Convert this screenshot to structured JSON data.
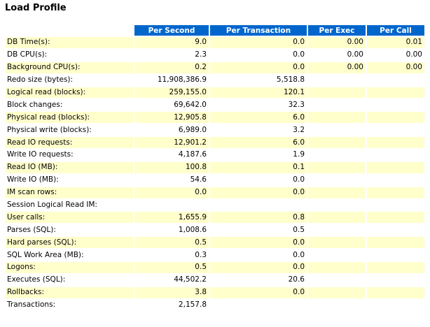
{
  "title": "Load Profile",
  "colors": {
    "header_bg": "#0066cc",
    "header_text": "#ffffff",
    "row_shaded": "#ffffcc",
    "row_plain": "#ffffff"
  },
  "columns": [
    "Per Second",
    "Per Transaction",
    "Per Exec",
    "Per Call"
  ],
  "rows": [
    {
      "label": "DB Time(s):",
      "per_second": "9.0",
      "per_transaction": "0.0",
      "per_exec": "0.00",
      "per_call": "0.01"
    },
    {
      "label": "DB CPU(s):",
      "per_second": "2.3",
      "per_transaction": "0.0",
      "per_exec": "0.00",
      "per_call": "0.00"
    },
    {
      "label": "Background CPU(s):",
      "per_second": "0.2",
      "per_transaction": "0.0",
      "per_exec": "0.00",
      "per_call": "0.00"
    },
    {
      "label": "Redo size (bytes):",
      "per_second": "11,908,386.9",
      "per_transaction": "5,518.8",
      "per_exec": "",
      "per_call": ""
    },
    {
      "label": "Logical read (blocks):",
      "per_second": "259,155.0",
      "per_transaction": "120.1",
      "per_exec": "",
      "per_call": ""
    },
    {
      "label": "Block changes:",
      "per_second": "69,642.0",
      "per_transaction": "32.3",
      "per_exec": "",
      "per_call": ""
    },
    {
      "label": "Physical read (blocks):",
      "per_second": "12,905.8",
      "per_transaction": "6.0",
      "per_exec": "",
      "per_call": ""
    },
    {
      "label": "Physical write (blocks):",
      "per_second": "6,989.0",
      "per_transaction": "3.2",
      "per_exec": "",
      "per_call": ""
    },
    {
      "label": "Read IO requests:",
      "per_second": "12,901.2",
      "per_transaction": "6.0",
      "per_exec": "",
      "per_call": ""
    },
    {
      "label": "Write IO requests:",
      "per_second": "4,187.6",
      "per_transaction": "1.9",
      "per_exec": "",
      "per_call": ""
    },
    {
      "label": "Read IO (MB):",
      "per_second": "100.8",
      "per_transaction": "0.1",
      "per_exec": "",
      "per_call": ""
    },
    {
      "label": "Write IO (MB):",
      "per_second": "54.6",
      "per_transaction": "0.0",
      "per_exec": "",
      "per_call": ""
    },
    {
      "label": "IM scan rows:",
      "per_second": "0.0",
      "per_transaction": "0.0",
      "per_exec": "",
      "per_call": ""
    },
    {
      "label": "Session Logical Read IM:",
      "per_second": "",
      "per_transaction": "",
      "per_exec": "",
      "per_call": ""
    },
    {
      "label": "User calls:",
      "per_second": "1,655.9",
      "per_transaction": "0.8",
      "per_exec": "",
      "per_call": ""
    },
    {
      "label": "Parses (SQL):",
      "per_second": "1,008.6",
      "per_transaction": "0.5",
      "per_exec": "",
      "per_call": ""
    },
    {
      "label": "Hard parses (SQL):",
      "per_second": "0.5",
      "per_transaction": "0.0",
      "per_exec": "",
      "per_call": ""
    },
    {
      "label": "SQL Work Area (MB):",
      "per_second": "0.3",
      "per_transaction": "0.0",
      "per_exec": "",
      "per_call": ""
    },
    {
      "label": "Logons:",
      "per_second": "0.5",
      "per_transaction": "0.0",
      "per_exec": "",
      "per_call": ""
    },
    {
      "label": "Executes (SQL):",
      "per_second": "44,502.2",
      "per_transaction": "20.6",
      "per_exec": "",
      "per_call": ""
    },
    {
      "label": "Rollbacks:",
      "per_second": "3.8",
      "per_transaction": "0.0",
      "per_exec": "",
      "per_call": ""
    },
    {
      "label": "Transactions:",
      "per_second": "2,157.8",
      "per_transaction": "",
      "per_exec": "",
      "per_call": ""
    }
  ]
}
